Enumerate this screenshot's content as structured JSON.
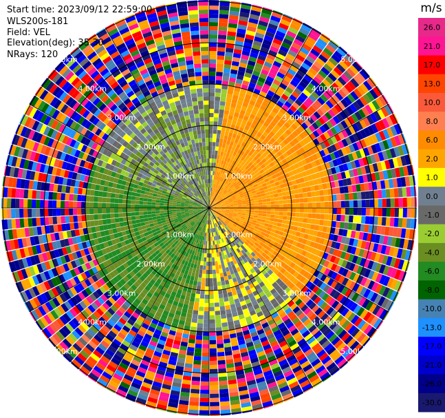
{
  "header": {
    "start_time": "Start time: 2023/09/12 22:59:00",
    "instrument": "WLS200s-181",
    "field": "Field: VEL",
    "elevation": "Elevation(deg): 35.30",
    "nrays": "NRays: 120"
  },
  "colorbar": {
    "unit": "m/s",
    "ticks": [
      "26.0",
      "21.0",
      "17.0",
      "13.0",
      "10.0",
      "8.0",
      "6.0",
      "2.0",
      "1.0",
      "0.0",
      "-1.0",
      "-2.0",
      "-4.0",
      "-6.0",
      "-8.0",
      "-10.0",
      "-13.0",
      "-17.0",
      "-21.0",
      "-26.0",
      "-30.0"
    ],
    "colors": [
      "#e7298a",
      "#ff1493",
      "#ff0000",
      "#ff4500",
      "#fa5a3a",
      "#ff7f50",
      "#ff8c00",
      "#ffa500",
      "#ffff00",
      "#708090",
      "#696969",
      "#9acd32",
      "#6b8e23",
      "#228b22",
      "#006400",
      "#4682b4",
      "#1e90ff",
      "#0000ff",
      "#0000cd",
      "#00008b",
      "#191970"
    ]
  },
  "chart_data": {
    "type": "polar_ppi",
    "variable": "VEL",
    "unit": "m/s",
    "n_rays": 120,
    "range_rings_km": [
      1.0,
      2.0,
      3.0,
      4.0,
      5.0
    ],
    "range_ring_labels": [
      "1.00km",
      "2.00km",
      "3.00km",
      "4.00km",
      "5.00km"
    ],
    "azimuth_lines_deg": [
      0,
      30,
      60,
      90,
      120,
      150,
      180,
      210,
      240,
      270,
      300,
      330
    ],
    "color_range": [
      -30,
      26
    ],
    "dominant_regions": [
      {
        "sector": "north-east",
        "azimuth_from": 10,
        "azimuth_to": 135,
        "range_km": [
          0,
          3.0
        ],
        "velocity": 6.0
      },
      {
        "sector": "south-west",
        "azimuth_from": 190,
        "azimuth_to": 290,
        "range_km": [
          0,
          3.0
        ],
        "velocity": -4.0
      },
      {
        "sector": "north-west",
        "azimuth_from": 290,
        "azimuth_to": 360,
        "range_km": [
          0,
          2.5
        ],
        "velocity": -1.0
      },
      {
        "sector": "south-east",
        "azimuth_from": 135,
        "azimuth_to": 190,
        "range_km": [
          0,
          2.5
        ],
        "velocity": 0.5
      }
    ],
    "noise_beyond_km": 3.0
  }
}
